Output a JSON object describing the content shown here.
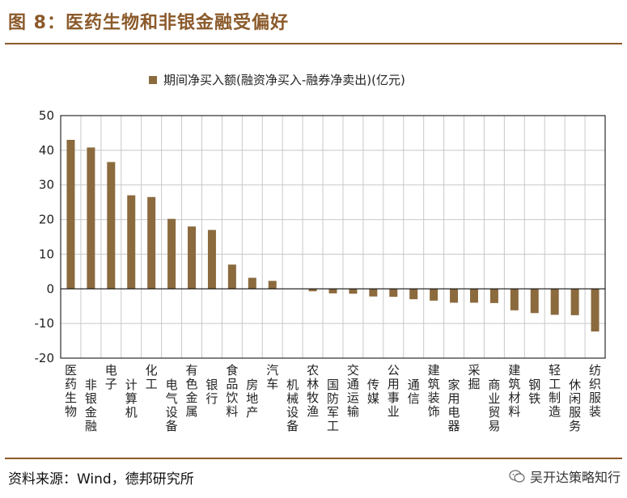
{
  "header": {
    "title": "图 8：医药生物和非银金融受偏好"
  },
  "footer": {
    "source": "资料来源：Wind，德邦研究所",
    "watermark": "吴开达策略知行"
  },
  "colors": {
    "accent": "#8B5A2B",
    "bar": "#8B6A3E",
    "grid": "#c8c8c8"
  },
  "chart_data": {
    "type": "bar",
    "title": "",
    "legend": "期间净买入额(融资净买入-融券净卖出)(亿元)",
    "legend_position": "top",
    "grid": true,
    "xlabel": "",
    "ylabel": "",
    "ylim": [
      -20,
      50
    ],
    "yticks": [
      50,
      40,
      30,
      20,
      10,
      0,
      -10,
      -20
    ],
    "categories": [
      "医药生物",
      "非银金融",
      "电子",
      "计算机",
      "化工",
      "电气设备",
      "有色金属",
      "银行",
      "食品饮料",
      "房地产",
      "汽车",
      "机械设备",
      "农林牧渔",
      "国防军工",
      "交通运输",
      "传媒",
      "公用事业",
      "通信",
      "建筑装饰",
      "家用电器",
      "采掘",
      "商业贸易",
      "建筑材料",
      "钢铁",
      "轻工制造",
      "休闲服务",
      "纺织服装"
    ],
    "series": [
      {
        "name": "期间净买入额(融资净买入-融券净卖出)(亿元)",
        "values": [
          43.0,
          40.8,
          36.6,
          27.0,
          26.5,
          20.2,
          18.0,
          17.0,
          7.0,
          3.2,
          2.3,
          0.0,
          -0.7,
          -1.3,
          -1.4,
          -2.2,
          -2.3,
          -3.0,
          -3.4,
          -4.0,
          -4.0,
          -4.1,
          -6.2,
          -7.0,
          -7.5,
          -7.6,
          -12.3
        ]
      }
    ]
  }
}
